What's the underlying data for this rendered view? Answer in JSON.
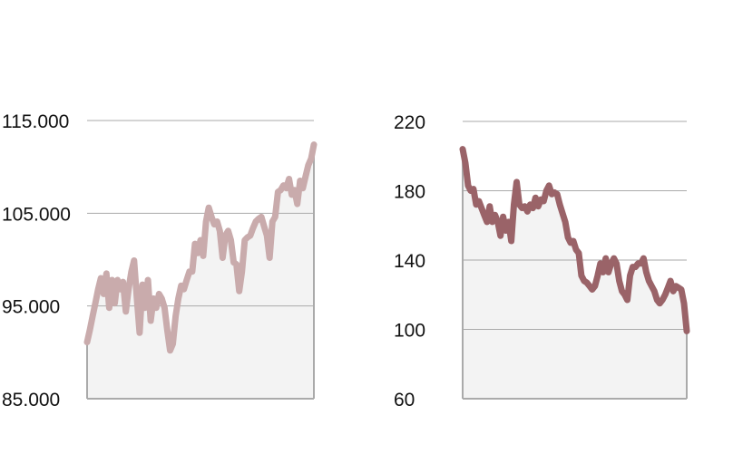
{
  "chart_data": [
    {
      "type": "line",
      "ylim": [
        85000,
        115000
      ],
      "yticks": [
        {
          "value": 85000,
          "label": "85.000"
        },
        {
          "value": 95000,
          "label": "95.000"
        },
        {
          "value": 105000,
          "label": "105.000"
        },
        {
          "value": 115000,
          "label": "115.000"
        }
      ],
      "grid": true,
      "series": [
        {
          "color": "#c9abac",
          "values": [
            91100,
            92400,
            93900,
            95300,
            96800,
            98000,
            96300,
            98500,
            94800,
            97800,
            95300,
            97800,
            96800,
            97600,
            94400,
            96800,
            98700,
            99900,
            95800,
            92100,
            97300,
            94800,
            97800,
            93400,
            95800,
            94800,
            96300,
            95800,
            94800,
            92400,
            90200,
            90900,
            93900,
            95800,
            97200,
            96800,
            97800,
            98700,
            98700,
            101700,
            100700,
            102100,
            100400,
            104100,
            105600,
            104600,
            103800,
            104100,
            103100,
            100200,
            102600,
            103100,
            102100,
            99700,
            99500,
            96600,
            98700,
            102100,
            102400,
            102600,
            103400,
            104100,
            104400,
            104600,
            103600,
            102600,
            100200,
            104100,
            104600,
            107300,
            107500,
            108000,
            107700,
            108700,
            107000,
            107500,
            106000,
            108500,
            107700,
            109000,
            110200,
            110900,
            112400
          ]
        }
      ]
    },
    {
      "type": "line",
      "ylim": [
        60,
        220
      ],
      "yticks": [
        60,
        100,
        140,
        180,
        220
      ],
      "grid": true,
      "series": [
        {
          "color": "#9a6368",
          "values": [
            204,
            196,
            183,
            180,
            181,
            172,
            174,
            170,
            166,
            162,
            171,
            162,
            166,
            162,
            154,
            165,
            157,
            162,
            151,
            172,
            185,
            172,
            170,
            171,
            168,
            172,
            170,
            176,
            171,
            175,
            174,
            180,
            183,
            178,
            179,
            178,
            172,
            167,
            162,
            153,
            150,
            151,
            146,
            144,
            131,
            128,
            127,
            125,
            123,
            125,
            131,
            138,
            133,
            141,
            133,
            138,
            141,
            138,
            128,
            122,
            120,
            117,
            131,
            136,
            136,
            138,
            138,
            141,
            133,
            128,
            125,
            122,
            117,
            115,
            117,
            120,
            124,
            128,
            122,
            125,
            124,
            123,
            115,
            99
          ]
        }
      ]
    }
  ]
}
